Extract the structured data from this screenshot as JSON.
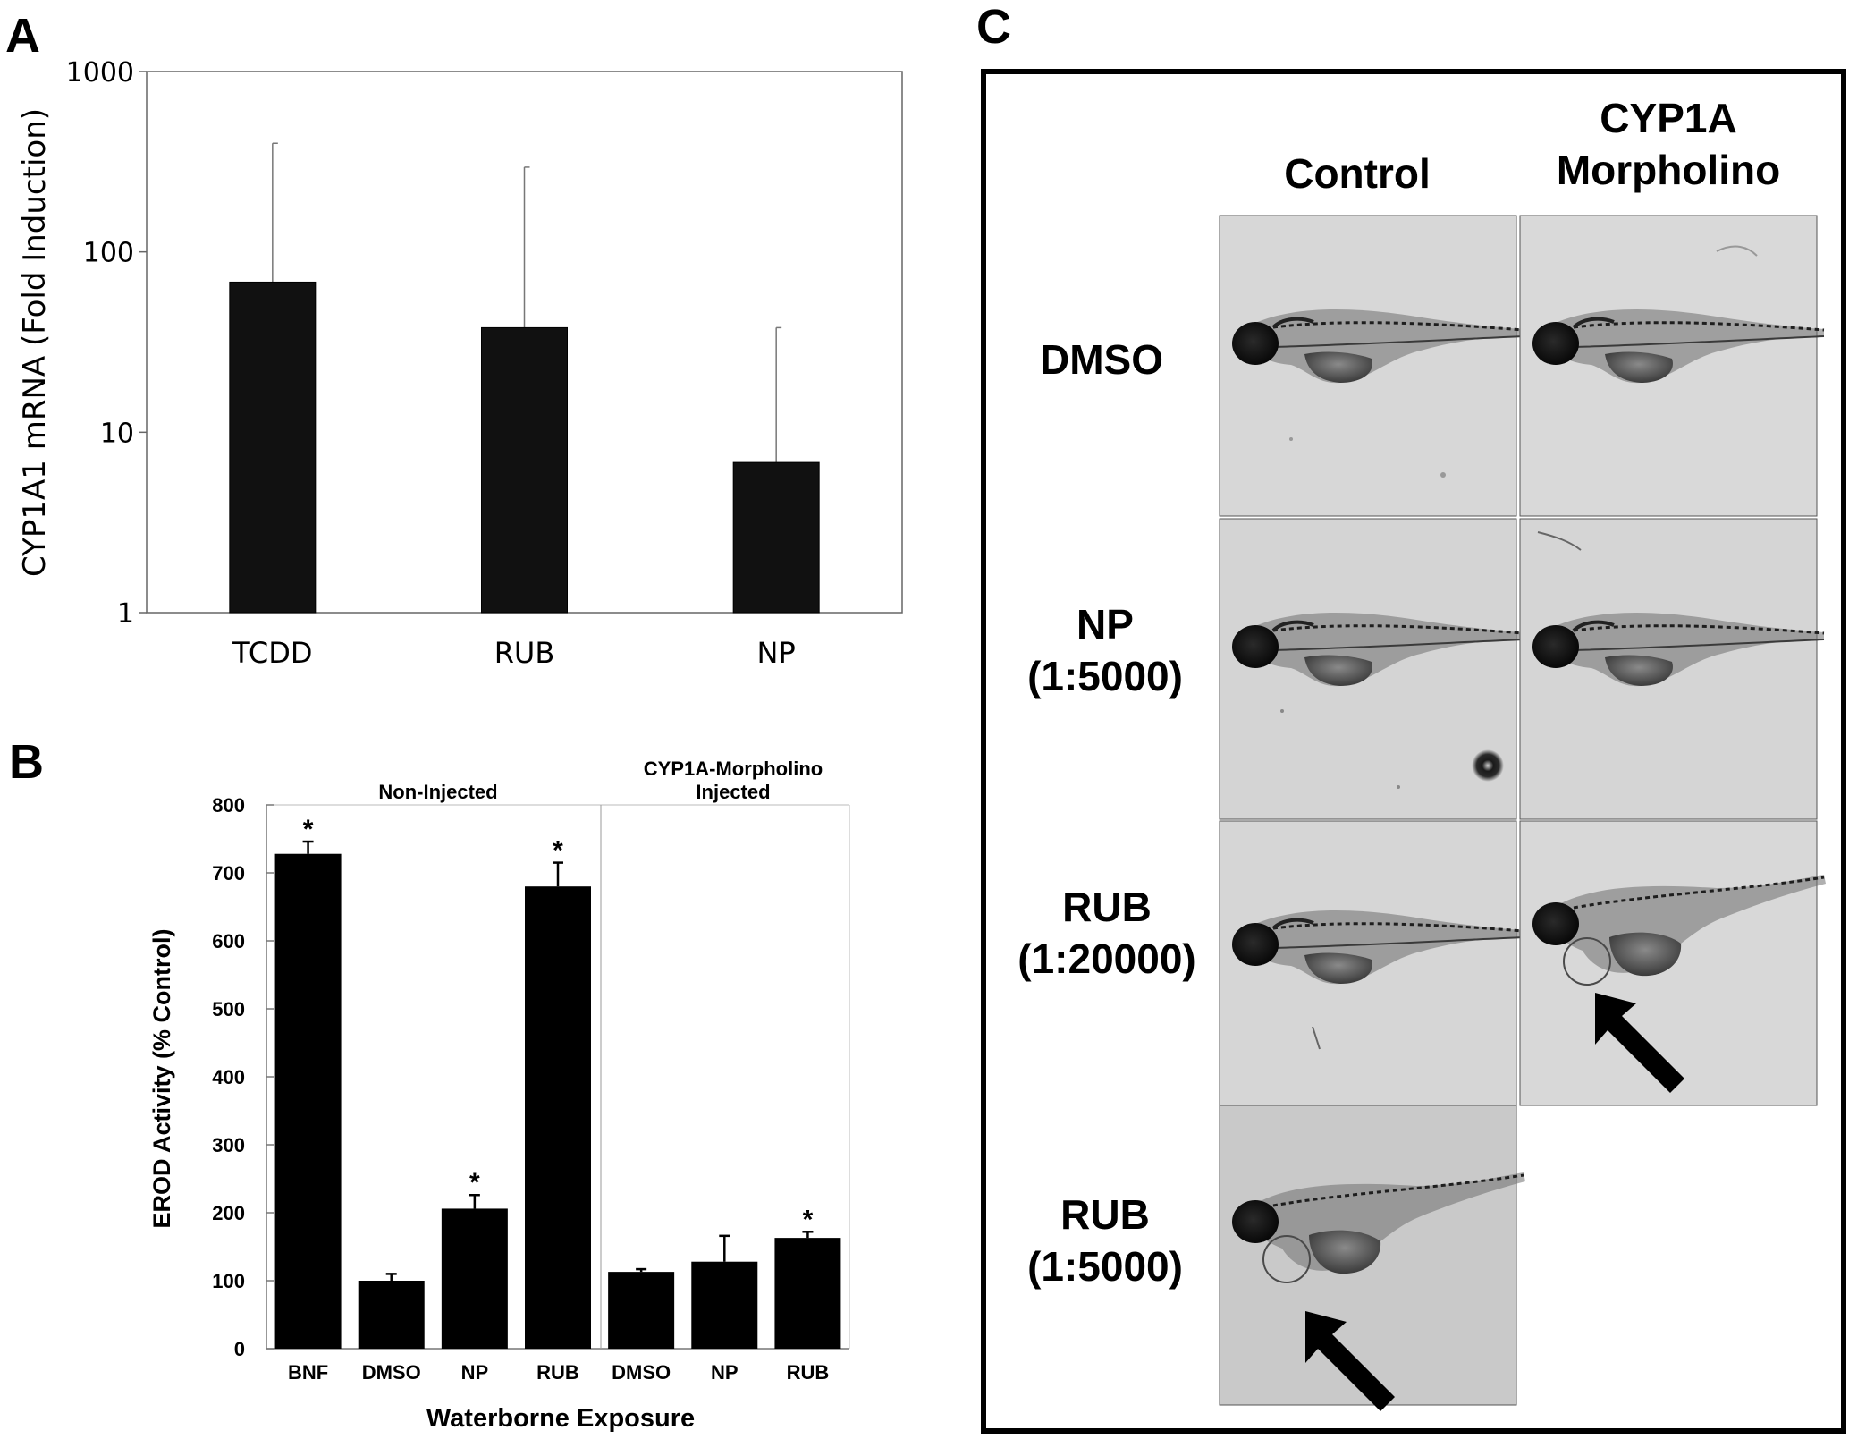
{
  "panels": {
    "a": {
      "letter": "A"
    },
    "b": {
      "letter": "B"
    },
    "c": {
      "letter": "C"
    }
  },
  "chart_data": [
    {
      "panel": "A",
      "type": "bar",
      "title": "",
      "xlabel": "",
      "ylabel": "CYP1A1 mRNA (Fold Induction)",
      "yscale": "log",
      "ylim": [
        1,
        1000
      ],
      "yticks": [
        "1",
        "10",
        "100",
        "1000"
      ],
      "categories": [
        "TCDD",
        "RUB",
        "NP"
      ],
      "values": [
        68,
        38,
        6.8
      ],
      "error_upper": [
        400,
        295,
        38
      ],
      "bar_color": "#111111",
      "grid": false,
      "legend": "none"
    },
    {
      "panel": "B",
      "type": "bar",
      "title": "",
      "xlabel": "Waterborne Exposure",
      "ylabel": "EROD Activity (% Control)",
      "ylim": [
        0,
        800
      ],
      "yticks": [
        "0",
        "100",
        "200",
        "300",
        "400",
        "500",
        "600",
        "700",
        "800"
      ],
      "groups": [
        {
          "label": "Non-Injected",
          "label_lines": [
            "Non-Injected"
          ],
          "categories": [
            "BNF",
            "DMSO",
            "NP",
            "RUB"
          ]
        },
        {
          "label": "CYP1A-Morpholino Injected",
          "label_lines": [
            "CYP1A-Morpholino",
            "Injected"
          ],
          "categories": [
            "DMSO",
            "NP",
            "RUB"
          ]
        }
      ],
      "categories": [
        "BNF",
        "DMSO",
        "NP",
        "RUB",
        "DMSO",
        "NP",
        "RUB"
      ],
      "values": [
        728,
        100,
        206,
        680,
        113,
        128,
        163
      ],
      "error": [
        18,
        10,
        20,
        35,
        4,
        38,
        9
      ],
      "significance_marker": "*",
      "significant": [
        true,
        false,
        true,
        true,
        false,
        false,
        true
      ],
      "bar_color": "#000000",
      "grid": false,
      "legend": "none"
    }
  ],
  "panel_c": {
    "column_headers": [
      [
        "Control"
      ],
      [
        "CYP1A",
        "Morpholino"
      ]
    ],
    "row_labels": [
      [
        "DMSO"
      ],
      [
        "NP",
        "(1:5000)"
      ],
      [
        "RUB",
        "(1:20000)"
      ],
      [
        "RUB",
        "(1:5000)"
      ]
    ],
    "arrows": [
      "RUB (1:20000) / CYP1A Morpholino",
      "RUB (1:5000) / Control"
    ]
  }
}
